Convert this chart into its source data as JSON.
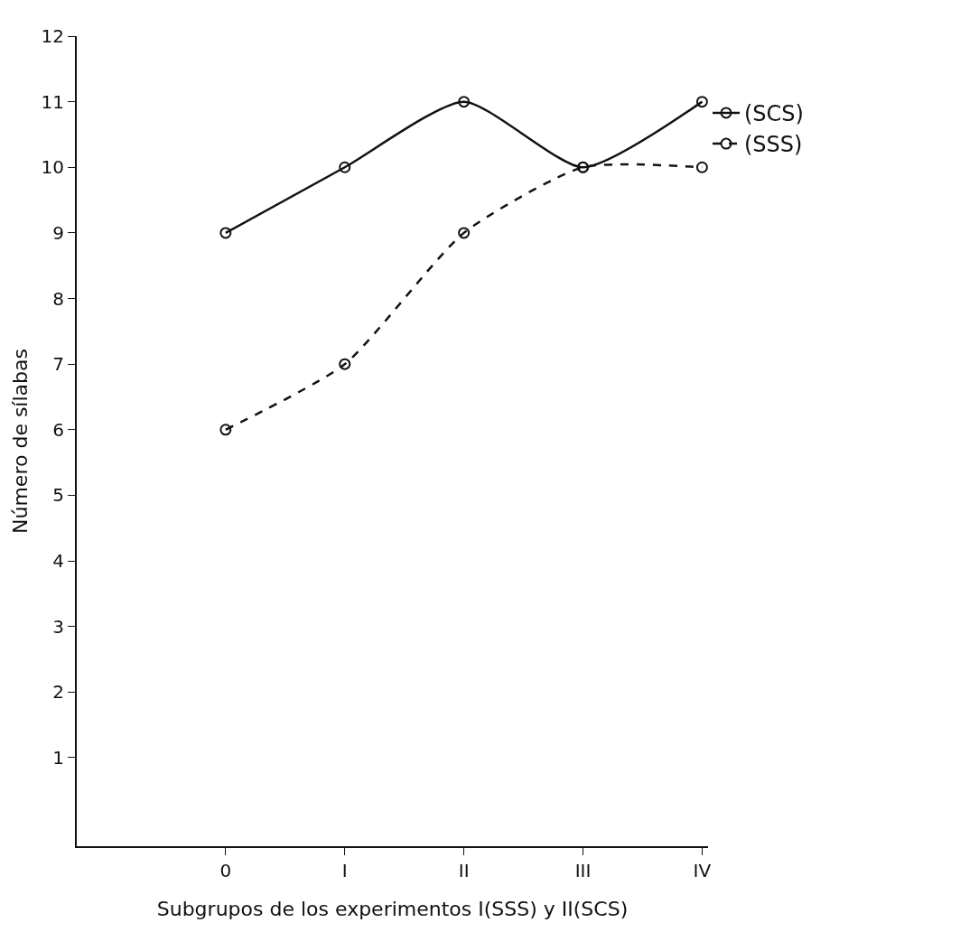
{
  "chart_data": {
    "type": "line",
    "xlabel": "Subgrupos de los experimentos I(SSS) y II(SCS)",
    "ylabel": "Número de sílabas",
    "categories": [
      "0",
      "I",
      "II",
      "III",
      "IV"
    ],
    "series": [
      {
        "name": "(SCS)",
        "color": "#111111",
        "values": [
          9,
          10,
          11,
          10,
          11
        ],
        "line_style": "solid"
      },
      {
        "name": "(SSS)",
        "color": "#111111",
        "values": [
          6,
          7,
          9,
          10,
          10
        ],
        "line_style": "dashed"
      }
    ],
    "ylim": [
      -0.35,
      12
    ],
    "yticks": [
      1,
      2,
      3,
      4,
      5,
      6,
      7,
      8,
      9,
      10,
      11,
      12
    ],
    "grid": false,
    "legend": "right",
    "marker": "circle"
  }
}
